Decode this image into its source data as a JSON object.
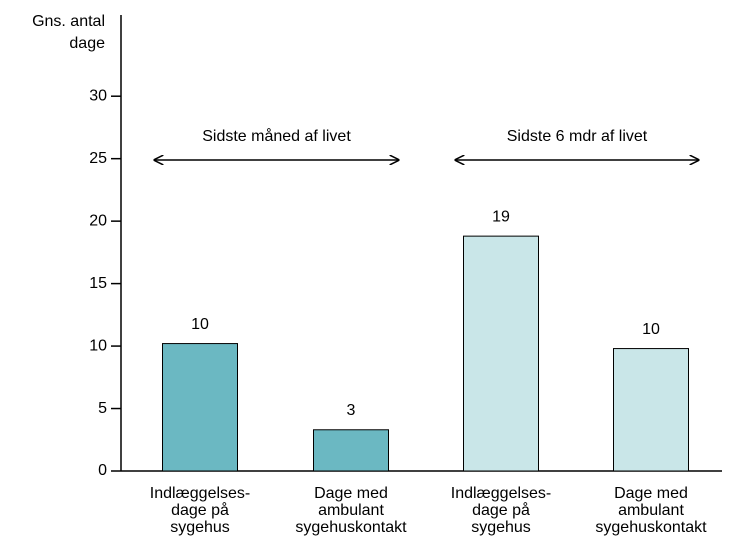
{
  "chart_data": {
    "type": "bar",
    "y_label": [
      "Gns. antal",
      "dage"
    ],
    "categories": [
      [
        "Indlæggelses-",
        "dage på",
        "sygehus"
      ],
      [
        "Dage med",
        "ambulant",
        "sygehuskontakt"
      ],
      [
        "Indlæggelses-",
        "dage på",
        "sygehus"
      ],
      [
        "Dage med",
        "ambulant",
        "sygehuskontakt"
      ]
    ],
    "values": [
      10.2,
      3.3,
      18.8,
      9.8
    ],
    "value_labels": [
      "10",
      "3",
      "19",
      "10"
    ],
    "colors": [
      "#6bb8c2",
      "#6bb8c2",
      "#c9e6e8",
      "#c9e6e8"
    ],
    "annotations": [
      {
        "text": "Sidste måned af livet",
        "span": [
          0,
          1
        ]
      },
      {
        "text": "Sidste 6 mdr af livet",
        "span": [
          2,
          3
        ]
      }
    ],
    "ylim": [
      0,
      36.5
    ],
    "yticks": [
      0,
      5,
      10,
      15,
      20,
      25,
      30
    ],
    "grid": false
  }
}
